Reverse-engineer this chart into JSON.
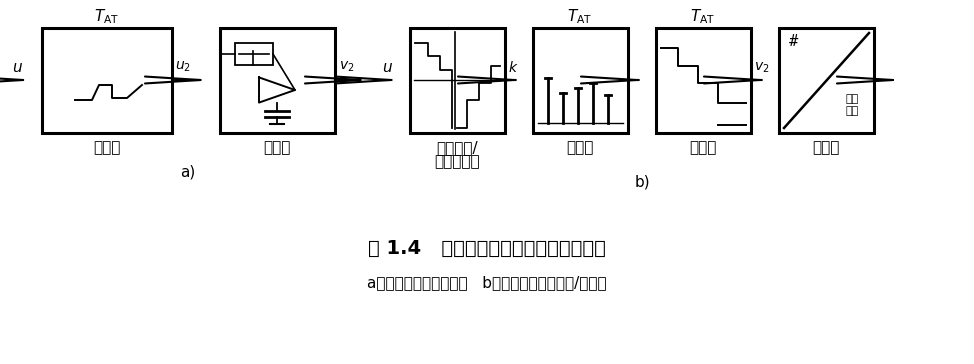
{
  "bg_color": "#ffffff",
  "title_text": "图 1.4   利用采样器和存储器采样的原理",
  "subtitle_text": "a）模拟输入信号的采样   b）带有采样功能的模/数转换",
  "label_caiyangqi": "采样器",
  "label_cunchudqi": "存储器",
  "label_lianghua": "量化（模/",
  "label_lianghua2": "数转换器）",
  "label_zhuanhuanqi": "转换器",
  "label_a": "a)",
  "label_b": "b)",
  "label_erjin": "二进",
  "label_zhishu": "制数",
  "title_fontsize": 14,
  "subtitle_fontsize": 11,
  "label_fontsize": 11
}
